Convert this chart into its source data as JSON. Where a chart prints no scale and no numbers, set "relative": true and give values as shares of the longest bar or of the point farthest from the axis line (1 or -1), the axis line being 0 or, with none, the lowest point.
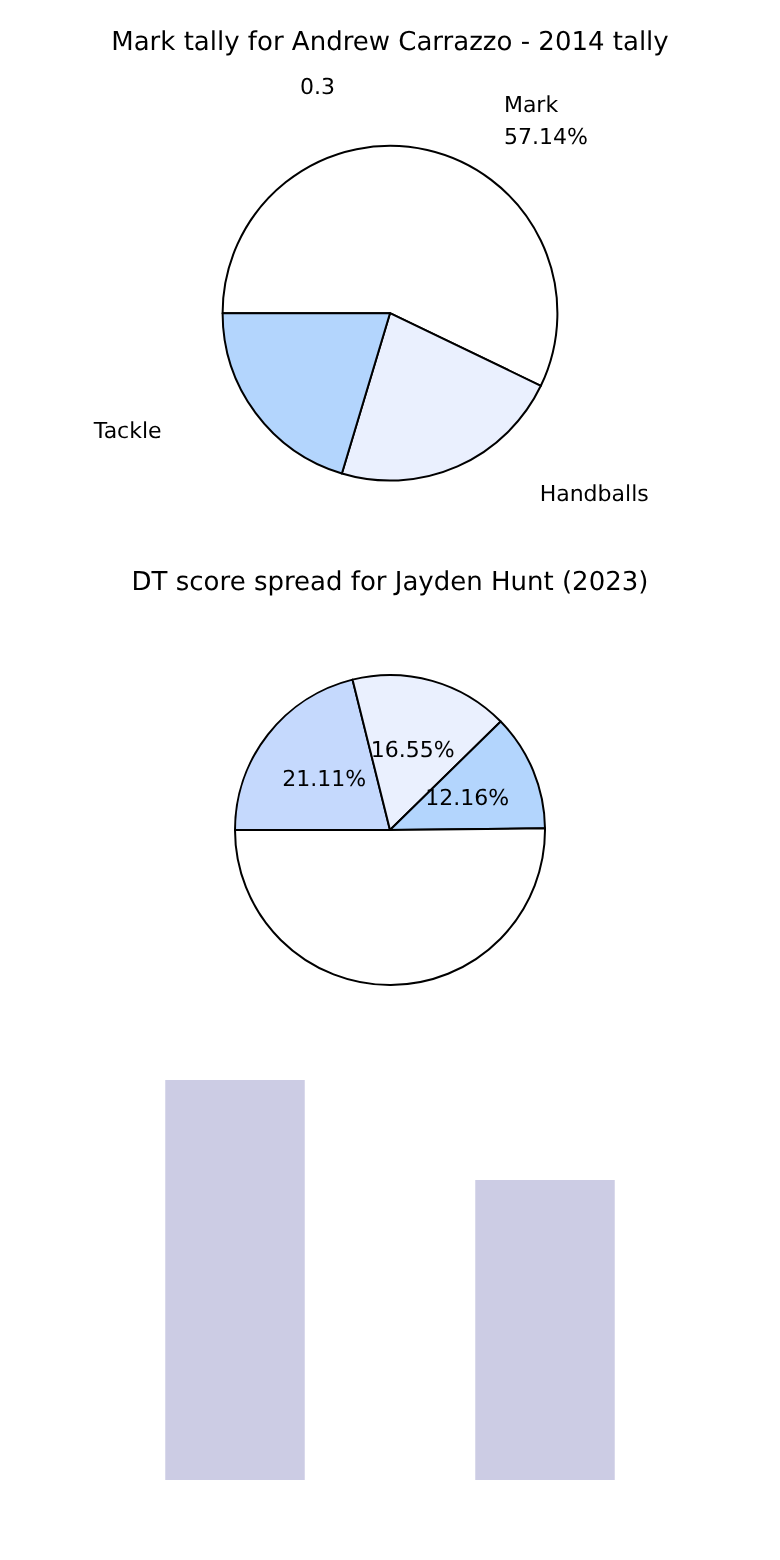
{
  "chart_data": [
    {
      "type": "pie",
      "title": "Mark tally for Andrew Carrazzo - 2014 tally",
      "categories": [
        "Mark",
        "Handballs",
        "Tackle"
      ],
      "values": [
        57.14,
        22.5,
        20.36
      ],
      "colors": [
        "#ffffff",
        "#eaf0fe",
        "#b3d5fd"
      ],
      "value_labels": [
        "57.14%",
        null,
        null
      ],
      "annotations": [
        "0.3"
      ]
    },
    {
      "type": "pie",
      "title": "DT score spread for Jayden Hunt (2023)",
      "categories": [
        null,
        null,
        null,
        null
      ],
      "values": [
        21.11,
        16.55,
        12.16,
        50.18
      ],
      "colors": [
        "#c5d9fd",
        "#eaf0fe",
        "#b3d5fd",
        "#ffffff"
      ],
      "value_labels": [
        "21.11%",
        "16.55%",
        "12.16%",
        null
      ]
    },
    {
      "type": "bar",
      "relative": true,
      "categories": [
        null,
        null
      ],
      "values": [
        1,
        0.75
      ],
      "color": "#cccce4"
    }
  ]
}
